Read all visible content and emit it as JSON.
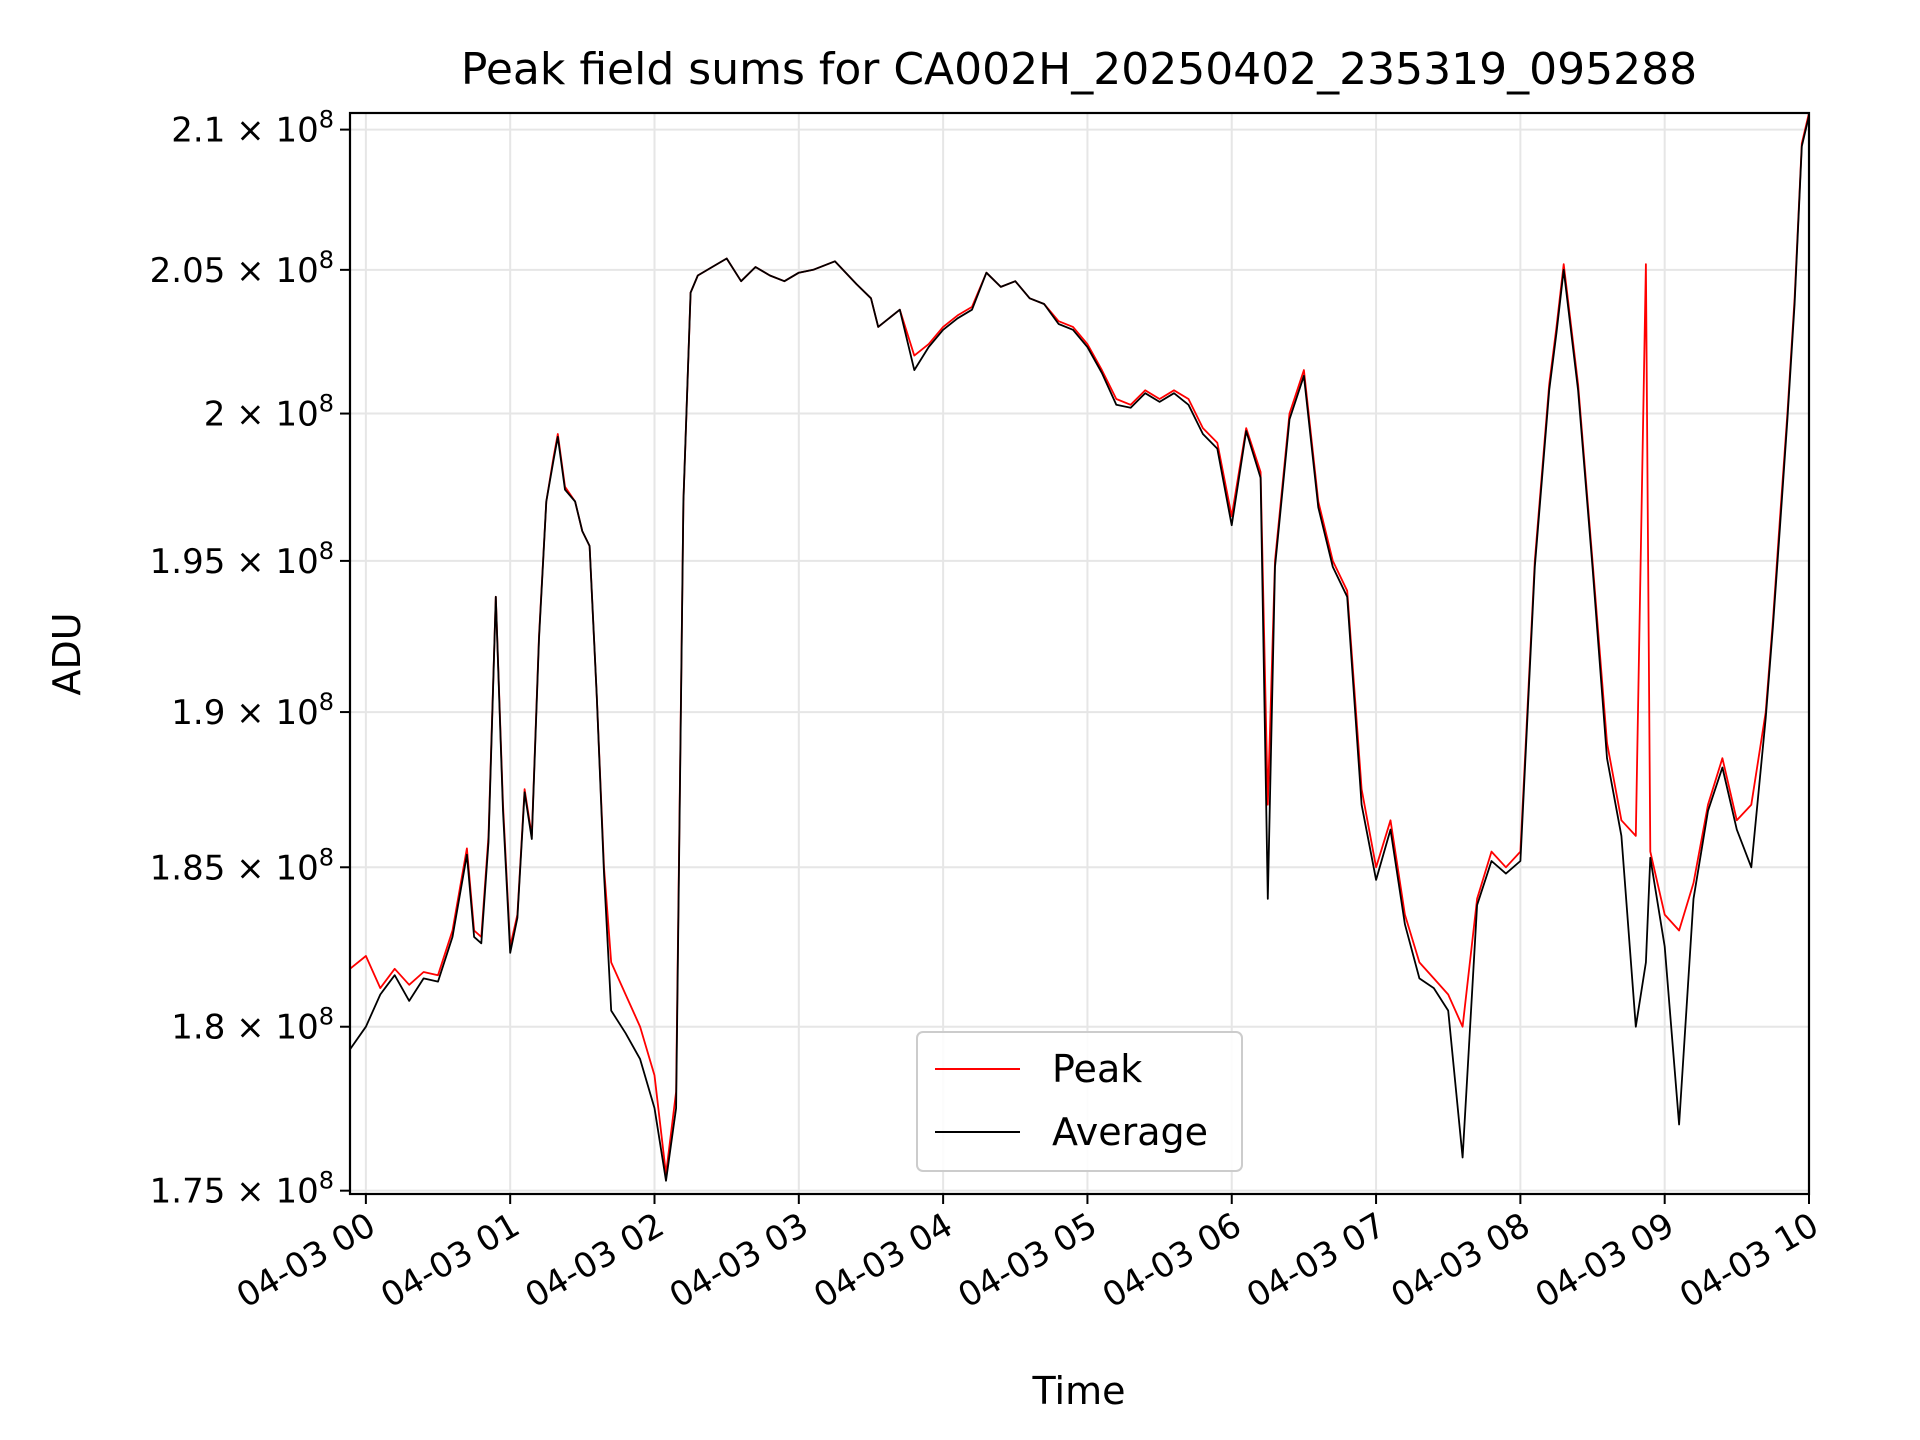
{
  "chart_data": {
    "type": "line",
    "title": "Peak field sums for CA002H_20250402_235319_095288",
    "xlabel": "Time",
    "ylabel": "ADU",
    "x_tick_labels": [
      "04-03 00",
      "04-03 01",
      "04-03 02",
      "04-03 03",
      "04-03 04",
      "04-03 05",
      "04-03 06",
      "04-03 07",
      "04-03 08",
      "04-03 09",
      "04-03 10"
    ],
    "x_tick_hours": [
      0,
      1,
      2,
      3,
      4,
      5,
      6,
      7,
      8,
      9,
      10
    ],
    "xlim_hours": [
      -0.11,
      10.0
    ],
    "y_ticks": [
      {
        "value": 175000000,
        "mantissa": "1.75"
      },
      {
        "value": 180000000,
        "mantissa": "1.8"
      },
      {
        "value": 185000000,
        "mantissa": "1.85"
      },
      {
        "value": 190000000,
        "mantissa": "1.9"
      },
      {
        "value": 195000000,
        "mantissa": "1.95"
      },
      {
        "value": 200000000,
        "mantissa": "2"
      },
      {
        "value": 205000000,
        "mantissa": "2.05"
      },
      {
        "value": 210000000,
        "mantissa": "2.1"
      }
    ],
    "y_tick_multiplier": "× 10",
    "y_tick_exponent": "8",
    "ylim": [
      174900000,
      210600000
    ],
    "y_scale": "log",
    "grid": true,
    "legend_position": "bottom-center",
    "series": [
      {
        "name": "Peak",
        "color": "#ff0000",
        "points": [
          [
            -0.11,
            181.8
          ],
          [
            0.0,
            182.2
          ],
          [
            0.1,
            181.2
          ],
          [
            0.2,
            181.8
          ],
          [
            0.3,
            181.3
          ],
          [
            0.4,
            181.7
          ],
          [
            0.5,
            181.6
          ],
          [
            0.6,
            183.0
          ],
          [
            0.7,
            185.6
          ],
          [
            0.75,
            183.0
          ],
          [
            0.8,
            182.8
          ],
          [
            0.85,
            186.0
          ],
          [
            0.9,
            193.8
          ],
          [
            0.95,
            187.0
          ],
          [
            1.0,
            182.5
          ],
          [
            1.05,
            183.5
          ],
          [
            1.1,
            187.5
          ],
          [
            1.15,
            186.0
          ],
          [
            1.2,
            192.5
          ],
          [
            1.25,
            197.0
          ],
          [
            1.3,
            198.5
          ],
          [
            1.33,
            199.3
          ],
          [
            1.38,
            197.5
          ],
          [
            1.45,
            197.0
          ],
          [
            1.5,
            196.0
          ],
          [
            1.55,
            195.5
          ],
          [
            1.6,
            190.5
          ],
          [
            1.65,
            185.0
          ],
          [
            1.7,
            182.0
          ],
          [
            1.8,
            181.0
          ],
          [
            1.9,
            180.0
          ],
          [
            2.0,
            178.5
          ],
          [
            2.08,
            175.5
          ],
          [
            2.15,
            178.0
          ],
          [
            2.2,
            197.0
          ],
          [
            2.25,
            204.2
          ],
          [
            2.3,
            204.8
          ],
          [
            2.4,
            205.1
          ],
          [
            2.5,
            205.4
          ],
          [
            2.6,
            204.6
          ],
          [
            2.7,
            205.1
          ],
          [
            2.8,
            204.8
          ],
          [
            2.9,
            204.6
          ],
          [
            3.0,
            204.9
          ],
          [
            3.1,
            205.0
          ],
          [
            3.25,
            205.3
          ],
          [
            3.4,
            204.5
          ],
          [
            3.5,
            204.0
          ],
          [
            3.55,
            203.0
          ],
          [
            3.7,
            203.6
          ],
          [
            3.8,
            202.0
          ],
          [
            3.9,
            202.4
          ],
          [
            4.0,
            203.0
          ],
          [
            4.1,
            203.4
          ],
          [
            4.2,
            203.7
          ],
          [
            4.3,
            204.9
          ],
          [
            4.4,
            204.4
          ],
          [
            4.5,
            204.6
          ],
          [
            4.6,
            204.0
          ],
          [
            4.7,
            203.8
          ],
          [
            4.8,
            203.2
          ],
          [
            4.9,
            203.0
          ],
          [
            5.0,
            202.4
          ],
          [
            5.1,
            201.5
          ],
          [
            5.2,
            200.5
          ],
          [
            5.3,
            200.3
          ],
          [
            5.4,
            200.8
          ],
          [
            5.5,
            200.5
          ],
          [
            5.6,
            200.8
          ],
          [
            5.7,
            200.5
          ],
          [
            5.8,
            199.5
          ],
          [
            5.9,
            199.0
          ],
          [
            6.0,
            196.5
          ],
          [
            6.1,
            199.5
          ],
          [
            6.2,
            198.0
          ],
          [
            6.25,
            187.0
          ],
          [
            6.3,
            195.0
          ],
          [
            6.4,
            200.0
          ],
          [
            6.5,
            201.5
          ],
          [
            6.6,
            197.0
          ],
          [
            6.7,
            195.0
          ],
          [
            6.8,
            194.0
          ],
          [
            6.9,
            187.5
          ],
          [
            7.0,
            185.0
          ],
          [
            7.1,
            186.5
          ],
          [
            7.2,
            183.5
          ],
          [
            7.3,
            182.0
          ],
          [
            7.4,
            181.5
          ],
          [
            7.5,
            181.0
          ],
          [
            7.6,
            180.0
          ],
          [
            7.7,
            184.0
          ],
          [
            7.8,
            185.5
          ],
          [
            7.9,
            185.0
          ],
          [
            8.0,
            185.5
          ],
          [
            8.1,
            195.0
          ],
          [
            8.2,
            201.0
          ],
          [
            8.25,
            203.0
          ],
          [
            8.3,
            205.2
          ],
          [
            8.4,
            201.0
          ],
          [
            8.5,
            195.0
          ],
          [
            8.6,
            189.0
          ],
          [
            8.7,
            186.5
          ],
          [
            8.8,
            186.0
          ],
          [
            8.87,
            205.2
          ],
          [
            8.9,
            185.5
          ],
          [
            9.0,
            183.5
          ],
          [
            9.1,
            183.0
          ],
          [
            9.2,
            184.5
          ],
          [
            9.3,
            187.0
          ],
          [
            9.4,
            188.5
          ],
          [
            9.5,
            186.5
          ],
          [
            9.6,
            187.0
          ],
          [
            9.7,
            190.0
          ],
          [
            9.75,
            193.0
          ],
          [
            9.8,
            196.5
          ],
          [
            9.85,
            200.0
          ],
          [
            9.9,
            204.0
          ],
          [
            9.95,
            209.5
          ],
          [
            10.0,
            210.6
          ]
        ]
      },
      {
        "name": "Average",
        "color": "#000000",
        "points": [
          [
            -0.11,
            179.3
          ],
          [
            0.0,
            180.0
          ],
          [
            0.1,
            181.0
          ],
          [
            0.2,
            181.6
          ],
          [
            0.3,
            180.8
          ],
          [
            0.4,
            181.5
          ],
          [
            0.5,
            181.4
          ],
          [
            0.6,
            182.8
          ],
          [
            0.7,
            185.4
          ],
          [
            0.75,
            182.8
          ],
          [
            0.8,
            182.6
          ],
          [
            0.85,
            185.8
          ],
          [
            0.9,
            193.8
          ],
          [
            0.95,
            186.8
          ],
          [
            1.0,
            182.3
          ],
          [
            1.05,
            183.4
          ],
          [
            1.1,
            187.4
          ],
          [
            1.15,
            185.9
          ],
          [
            1.2,
            192.4
          ],
          [
            1.25,
            197.0
          ],
          [
            1.3,
            198.4
          ],
          [
            1.33,
            199.2
          ],
          [
            1.38,
            197.4
          ],
          [
            1.45,
            197.0
          ],
          [
            1.5,
            196.0
          ],
          [
            1.55,
            195.5
          ],
          [
            1.6,
            190.5
          ],
          [
            1.65,
            184.8
          ],
          [
            1.7,
            180.5
          ],
          [
            1.8,
            179.8
          ],
          [
            1.9,
            179.0
          ],
          [
            2.0,
            177.5
          ],
          [
            2.08,
            175.3
          ],
          [
            2.15,
            177.5
          ],
          [
            2.2,
            197.0
          ],
          [
            2.25,
            204.2
          ],
          [
            2.3,
            204.8
          ],
          [
            2.4,
            205.1
          ],
          [
            2.5,
            205.4
          ],
          [
            2.6,
            204.6
          ],
          [
            2.7,
            205.1
          ],
          [
            2.8,
            204.8
          ],
          [
            2.9,
            204.6
          ],
          [
            3.0,
            204.9
          ],
          [
            3.1,
            205.0
          ],
          [
            3.25,
            205.3
          ],
          [
            3.4,
            204.5
          ],
          [
            3.5,
            204.0
          ],
          [
            3.55,
            203.0
          ],
          [
            3.7,
            203.6
          ],
          [
            3.8,
            201.5
          ],
          [
            3.9,
            202.3
          ],
          [
            4.0,
            202.9
          ],
          [
            4.1,
            203.3
          ],
          [
            4.2,
            203.6
          ],
          [
            4.3,
            204.9
          ],
          [
            4.4,
            204.4
          ],
          [
            4.5,
            204.6
          ],
          [
            4.6,
            204.0
          ],
          [
            4.7,
            203.8
          ],
          [
            4.8,
            203.1
          ],
          [
            4.9,
            202.9
          ],
          [
            5.0,
            202.3
          ],
          [
            5.1,
            201.4
          ],
          [
            5.2,
            200.3
          ],
          [
            5.3,
            200.2
          ],
          [
            5.4,
            200.7
          ],
          [
            5.5,
            200.4
          ],
          [
            5.6,
            200.7
          ],
          [
            5.7,
            200.3
          ],
          [
            5.8,
            199.3
          ],
          [
            5.9,
            198.8
          ],
          [
            6.0,
            196.2
          ],
          [
            6.1,
            199.4
          ],
          [
            6.2,
            197.8
          ],
          [
            6.25,
            184.0
          ],
          [
            6.3,
            194.8
          ],
          [
            6.4,
            199.8
          ],
          [
            6.5,
            201.3
          ],
          [
            6.6,
            196.8
          ],
          [
            6.7,
            194.8
          ],
          [
            6.8,
            193.8
          ],
          [
            6.9,
            187.0
          ],
          [
            7.0,
            184.6
          ],
          [
            7.1,
            186.2
          ],
          [
            7.2,
            183.2
          ],
          [
            7.3,
            181.5
          ],
          [
            7.4,
            181.2
          ],
          [
            7.5,
            180.5
          ],
          [
            7.6,
            176.0
          ],
          [
            7.7,
            183.8
          ],
          [
            7.8,
            185.2
          ],
          [
            7.9,
            184.8
          ],
          [
            8.0,
            185.2
          ],
          [
            8.1,
            194.8
          ],
          [
            8.2,
            200.8
          ],
          [
            8.25,
            202.8
          ],
          [
            8.3,
            205.0
          ],
          [
            8.4,
            200.8
          ],
          [
            8.5,
            194.8
          ],
          [
            8.6,
            188.5
          ],
          [
            8.7,
            186.0
          ],
          [
            8.8,
            180.0
          ],
          [
            8.87,
            182.0
          ],
          [
            8.9,
            185.3
          ],
          [
            9.0,
            182.5
          ],
          [
            9.1,
            177.0
          ],
          [
            9.2,
            184.0
          ],
          [
            9.3,
            186.8
          ],
          [
            9.4,
            188.2
          ],
          [
            9.5,
            186.2
          ],
          [
            9.6,
            185.0
          ],
          [
            9.7,
            189.8
          ],
          [
            9.75,
            192.8
          ],
          [
            9.8,
            196.2
          ],
          [
            9.85,
            199.8
          ],
          [
            9.9,
            203.8
          ],
          [
            9.95,
            209.4
          ],
          [
            10.0,
            210.5
          ]
        ]
      }
    ]
  }
}
